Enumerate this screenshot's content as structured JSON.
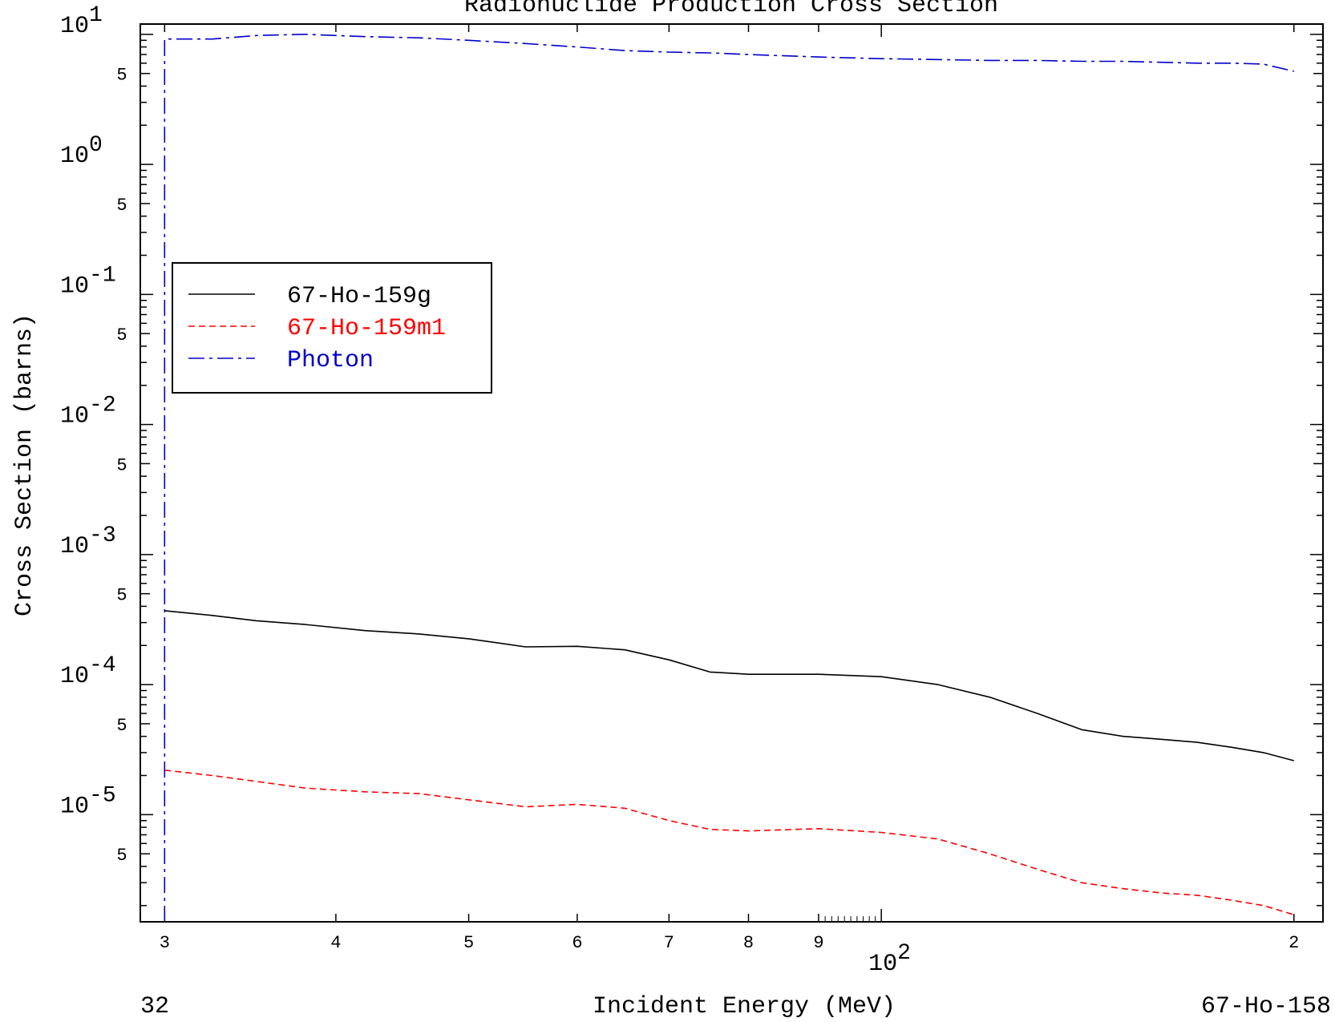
{
  "chart_data": {
    "type": "line",
    "title": "Radionuclide Production Cross Section",
    "xlabel": "Incident Energy (MeV)",
    "ylabel": "Cross Section (barns)",
    "xscale": "log",
    "yscale": "log",
    "xlim": [
      28.8,
      210
    ],
    "ylim": [
      1.5e-06,
      12
    ],
    "footer_left": "32",
    "footer_right": "67-Ho-158",
    "legend_position": "upper-left",
    "y_ticks": [
      {
        "value": 10,
        "base": "10",
        "exp": "1"
      },
      {
        "value": 1,
        "base": "10",
        "exp": "0"
      },
      {
        "value": 0.1,
        "base": "10",
        "exp": "-1"
      },
      {
        "value": 0.01,
        "base": "10",
        "exp": "-2"
      },
      {
        "value": 0.001,
        "base": "10",
        "exp": "-3"
      },
      {
        "value": 0.0001,
        "base": "10",
        "exp": "-4"
      },
      {
        "value": 1e-05,
        "base": "10",
        "exp": "-5"
      }
    ],
    "y_minor_label": "5",
    "x_ticks": [
      {
        "value": 30,
        "label": "3"
      },
      {
        "value": 40,
        "label": "4"
      },
      {
        "value": 50,
        "label": "5"
      },
      {
        "value": 60,
        "label": "6"
      },
      {
        "value": 70,
        "label": "7"
      },
      {
        "value": 80,
        "label": "8"
      },
      {
        "value": 90,
        "label": "9"
      },
      {
        "value": 200,
        "label": "2"
      }
    ],
    "x_decade_label": {
      "value": 100,
      "base": "10",
      "exp": "2"
    },
    "series": [
      {
        "name": "67-Ho-159g",
        "color": "#000000",
        "dash": "solid",
        "x": [
          30,
          32.5,
          35,
          38,
          42,
          46,
          50,
          55,
          60,
          65,
          70,
          75,
          80,
          90,
          100,
          110,
          120,
          130,
          140,
          150,
          160,
          170,
          180,
          190,
          200
        ],
        "y": [
          0.00037,
          0.00034,
          0.00031,
          0.00029,
          0.00026,
          0.000245,
          0.000225,
          0.000195,
          0.000197,
          0.000185,
          0.000155,
          0.000125,
          0.00012,
          0.00012,
          0.000115,
          0.0001,
          8e-05,
          6e-05,
          4.5e-05,
          4e-05,
          3.8e-05,
          3.6e-05,
          3.3e-05,
          3e-05,
          2.6e-05
        ]
      },
      {
        "name": "67-Ho-159m1",
        "color": "#ff0000",
        "dash": "dashed",
        "x": [
          30,
          32.5,
          35,
          38,
          42,
          46,
          50,
          55,
          60,
          65,
          70,
          75,
          80,
          90,
          100,
          110,
          120,
          130,
          140,
          150,
          160,
          170,
          180,
          190,
          200
        ],
        "y": [
          2.2e-05,
          2e-05,
          1.8e-05,
          1.6e-05,
          1.5e-05,
          1.45e-05,
          1.3e-05,
          1.15e-05,
          1.2e-05,
          1.12e-05,
          9e-06,
          7.7e-06,
          7.5e-06,
          7.8e-06,
          7.3e-06,
          6.5e-06,
          5e-06,
          3.8e-06,
          3e-06,
          2.7e-06,
          2.5e-06,
          2.4e-06,
          2.2e-06,
          2e-06,
          1.7e-06
        ]
      },
      {
        "name": "Photon",
        "color": "#0000cc",
        "dash": "dashdot",
        "x": [
          30,
          30,
          30,
          32.5,
          35,
          38,
          42,
          46,
          50,
          55,
          60,
          65,
          70,
          75,
          80,
          90,
          100,
          110,
          120,
          130,
          140,
          150,
          160,
          170,
          180,
          190,
          200
        ],
        "y": [
          1.5e-06,
          1,
          9.2,
          9.2,
          9.8,
          10,
          9.6,
          9.4,
          9.0,
          8.5,
          8.0,
          7.5,
          7.3,
          7.2,
          7.0,
          6.7,
          6.5,
          6.4,
          6.3,
          6.3,
          6.2,
          6.2,
          6.1,
          6.0,
          6.0,
          5.9,
          5.2
        ]
      }
    ]
  }
}
